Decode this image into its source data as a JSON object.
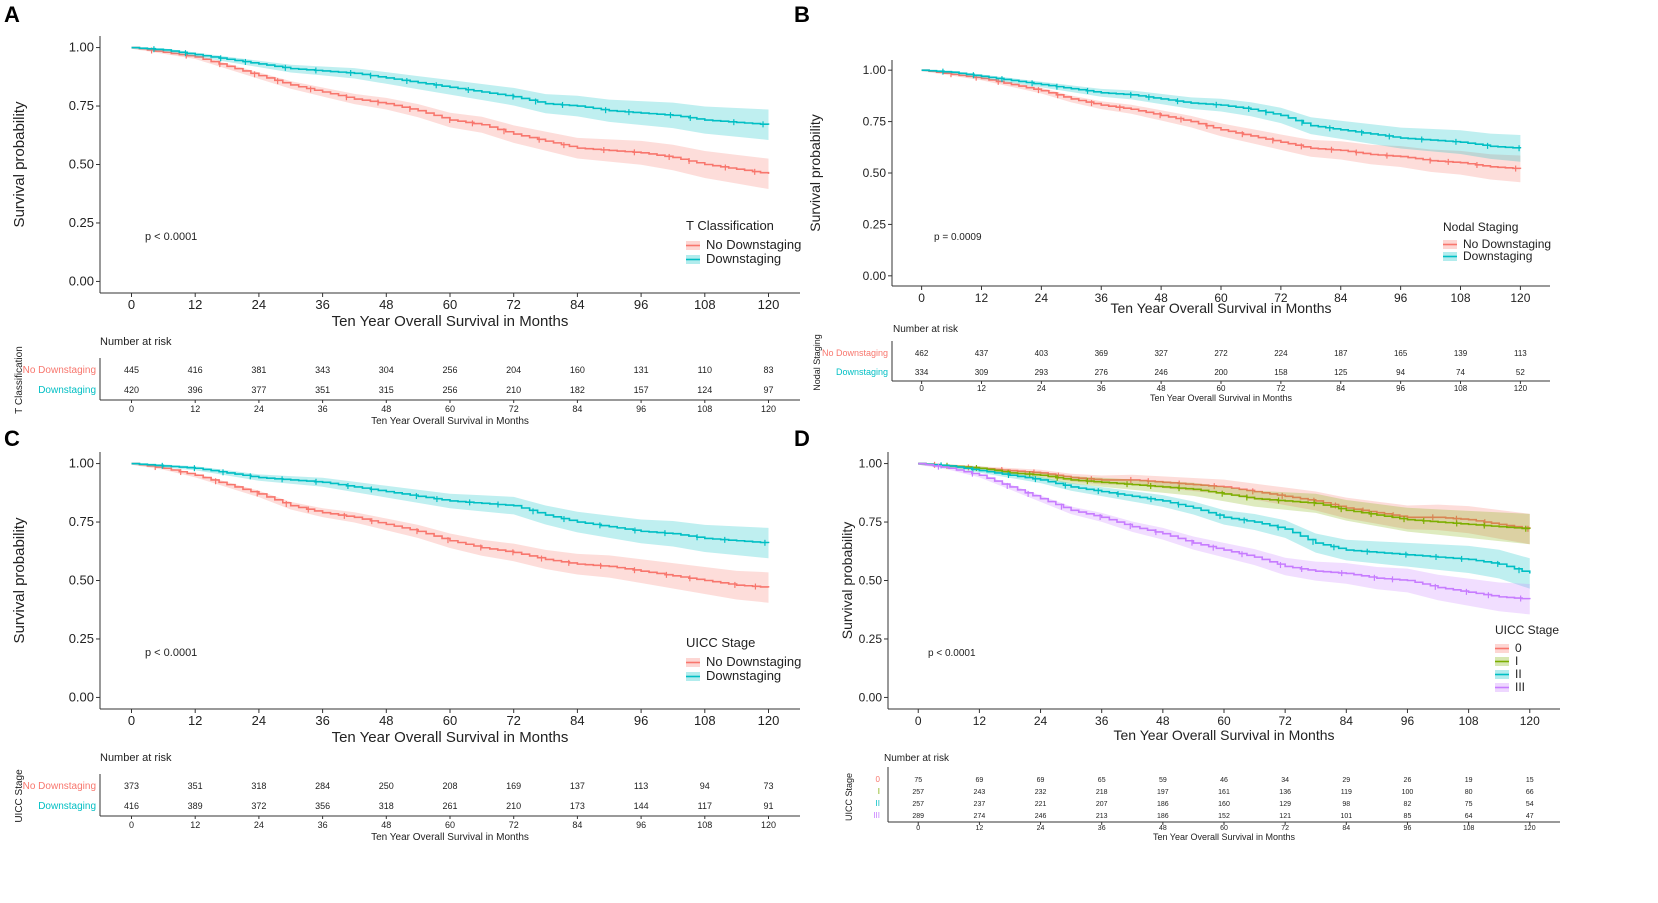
{
  "colors": {
    "no_downstaging": "#F8766D",
    "downstaging": "#00BFC4",
    "stage0": "#F8766D",
    "stageI": "#7CAE00",
    "stageII": "#00BFC4",
    "stageIII": "#C77CFF",
    "axis": "#333333",
    "text": "#222222"
  },
  "chart_data": [
    {
      "panel": "A",
      "type": "line",
      "ylabel": "Survival probability",
      "xlabel": "Ten Year Overall Survival in Months",
      "x_ticks": [
        0,
        12,
        24,
        36,
        48,
        60,
        72,
        84,
        96,
        108,
        120
      ],
      "y_ticks": [
        "0.00",
        "0.25",
        "0.50",
        "0.75",
        "1.00"
      ],
      "xlim": [
        0,
        120
      ],
      "ylim": [
        0,
        1
      ],
      "pvalue": "p < 0.0001",
      "legend_title": "T Classification",
      "series": [
        {
          "name": "No Downstaging",
          "color_key": "no_downstaging",
          "x": [
            0,
            6,
            12,
            18,
            24,
            30,
            36,
            42,
            48,
            54,
            60,
            66,
            72,
            78,
            84,
            90,
            96,
            102,
            108,
            114,
            120
          ],
          "values": [
            1.0,
            0.98,
            0.96,
            0.92,
            0.88,
            0.84,
            0.81,
            0.78,
            0.76,
            0.73,
            0.69,
            0.67,
            0.63,
            0.6,
            0.57,
            0.56,
            0.55,
            0.53,
            0.5,
            0.48,
            0.46
          ]
        },
        {
          "name": "Downstaging",
          "color_key": "downstaging",
          "x": [
            0,
            6,
            12,
            18,
            24,
            30,
            36,
            42,
            48,
            54,
            60,
            66,
            72,
            78,
            84,
            90,
            96,
            102,
            108,
            114,
            120
          ],
          "values": [
            1.0,
            0.99,
            0.97,
            0.95,
            0.93,
            0.91,
            0.9,
            0.89,
            0.87,
            0.85,
            0.83,
            0.81,
            0.79,
            0.76,
            0.75,
            0.73,
            0.72,
            0.71,
            0.69,
            0.68,
            0.67
          ]
        }
      ],
      "risk_table": {
        "header": "Number at risk",
        "strata_label": "T Classification",
        "xlabel": "Ten Year Overall Survival in Months",
        "rows": [
          {
            "name": "No Downstaging",
            "color_key": "no_downstaging",
            "values": [
              "445",
              "416",
              "381",
              "343",
              "304",
              "256",
              "204",
              "160",
              "131",
              "110",
              "83"
            ]
          },
          {
            "name": "Downstaging",
            "color_key": "downstaging",
            "values": [
              "420",
              "396",
              "377",
              "351",
              "315",
              "256",
              "210",
              "182",
              "157",
              "124",
              "97"
            ]
          }
        ]
      }
    },
    {
      "panel": "B",
      "type": "line",
      "ylabel": "Survival probability",
      "xlabel": "Ten Year Overall Survival in Months",
      "x_ticks": [
        0,
        12,
        24,
        36,
        48,
        60,
        72,
        84,
        96,
        108,
        120
      ],
      "y_ticks": [
        "0.00",
        "0.25",
        "0.50",
        "0.75",
        "1.00"
      ],
      "xlim": [
        0,
        120
      ],
      "ylim": [
        0,
        1
      ],
      "pvalue": "p = 0.0009",
      "legend_title": "Nodal Staging",
      "series": [
        {
          "name": "No Downstaging",
          "color_key": "no_downstaging",
          "x": [
            0,
            6,
            12,
            18,
            24,
            30,
            36,
            42,
            48,
            54,
            60,
            66,
            72,
            78,
            84,
            90,
            96,
            102,
            108,
            114,
            120
          ],
          "values": [
            1.0,
            0.98,
            0.96,
            0.93,
            0.9,
            0.86,
            0.83,
            0.81,
            0.78,
            0.75,
            0.71,
            0.68,
            0.65,
            0.62,
            0.61,
            0.59,
            0.58,
            0.56,
            0.55,
            0.53,
            0.52
          ]
        },
        {
          "name": "Downstaging",
          "color_key": "downstaging",
          "x": [
            0,
            6,
            12,
            18,
            24,
            30,
            36,
            42,
            48,
            54,
            60,
            66,
            72,
            78,
            84,
            90,
            96,
            102,
            108,
            114,
            120
          ],
          "values": [
            1.0,
            0.99,
            0.97,
            0.95,
            0.93,
            0.91,
            0.89,
            0.88,
            0.86,
            0.84,
            0.83,
            0.81,
            0.78,
            0.73,
            0.71,
            0.69,
            0.67,
            0.66,
            0.65,
            0.63,
            0.62
          ]
        }
      ],
      "risk_table": {
        "header": "Number at risk",
        "strata_label": "Nodal Staging",
        "xlabel": "Ten Year Overall Survival in Months",
        "rows": [
          {
            "name": "No Downstaging",
            "color_key": "no_downstaging",
            "values": [
              "462",
              "437",
              "403",
              "369",
              "327",
              "272",
              "224",
              "187",
              "165",
              "139",
              "113"
            ]
          },
          {
            "name": "Downstaging",
            "color_key": "downstaging",
            "values": [
              "334",
              "309",
              "293",
              "276",
              "246",
              "200",
              "158",
              "125",
              "94",
              "74",
              "52"
            ]
          }
        ]
      }
    },
    {
      "panel": "C",
      "type": "line",
      "ylabel": "Survival probability",
      "xlabel": "Ten Year Overall Survival in Months",
      "x_ticks": [
        0,
        12,
        24,
        36,
        48,
        60,
        72,
        84,
        96,
        108,
        120
      ],
      "y_ticks": [
        "0.00",
        "0.25",
        "0.50",
        "0.75",
        "1.00"
      ],
      "xlim": [
        0,
        120
      ],
      "ylim": [
        0,
        1
      ],
      "pvalue": "p < 0.0001",
      "legend_title": "UICC Stage",
      "series": [
        {
          "name": "No Downstaging",
          "color_key": "no_downstaging",
          "x": [
            0,
            6,
            12,
            18,
            24,
            30,
            36,
            42,
            48,
            54,
            60,
            66,
            72,
            78,
            84,
            90,
            96,
            102,
            108,
            114,
            120
          ],
          "values": [
            1.0,
            0.98,
            0.95,
            0.91,
            0.87,
            0.82,
            0.79,
            0.77,
            0.74,
            0.71,
            0.67,
            0.64,
            0.62,
            0.59,
            0.57,
            0.56,
            0.54,
            0.52,
            0.5,
            0.48,
            0.47
          ]
        },
        {
          "name": "Downstaging",
          "color_key": "downstaging",
          "x": [
            0,
            6,
            12,
            18,
            24,
            30,
            36,
            42,
            48,
            54,
            60,
            66,
            72,
            78,
            84,
            90,
            96,
            102,
            108,
            114,
            120
          ],
          "values": [
            1.0,
            0.99,
            0.98,
            0.96,
            0.94,
            0.93,
            0.92,
            0.9,
            0.88,
            0.86,
            0.84,
            0.83,
            0.82,
            0.78,
            0.75,
            0.73,
            0.71,
            0.7,
            0.68,
            0.67,
            0.66
          ]
        }
      ],
      "risk_table": {
        "header": "Number at risk",
        "strata_label": "UICC Stage",
        "xlabel": "Ten Year Overall Survival in Months",
        "rows": [
          {
            "name": "No Downstaging",
            "color_key": "no_downstaging",
            "values": [
              "373",
              "351",
              "318",
              "284",
              "250",
              "208",
              "169",
              "137",
              "113",
              "94",
              "73"
            ]
          },
          {
            "name": "Downstaging",
            "color_key": "downstaging",
            "values": [
              "416",
              "389",
              "372",
              "356",
              "318",
              "261",
              "210",
              "173",
              "144",
              "117",
              "91"
            ]
          }
        ]
      }
    },
    {
      "panel": "D",
      "type": "line",
      "ylabel": "Survival probability",
      "xlabel": "Ten Year Overall Survival in Months",
      "x_ticks": [
        0,
        12,
        24,
        36,
        48,
        60,
        72,
        84,
        96,
        108,
        120
      ],
      "y_ticks": [
        "0.00",
        "0.25",
        "0.50",
        "0.75",
        "1.00"
      ],
      "xlim": [
        0,
        120
      ],
      "ylim": [
        0,
        1
      ],
      "pvalue": "p < 0.0001",
      "legend_title": "UICC Stage",
      "series": [
        {
          "name": "0",
          "color_key": "stage0",
          "x": [
            0,
            6,
            12,
            18,
            24,
            30,
            36,
            42,
            48,
            54,
            60,
            66,
            72,
            78,
            84,
            90,
            96,
            102,
            108,
            114,
            120
          ],
          "values": [
            1.0,
            0.99,
            0.98,
            0.97,
            0.96,
            0.94,
            0.93,
            0.93,
            0.92,
            0.91,
            0.9,
            0.88,
            0.86,
            0.84,
            0.81,
            0.79,
            0.77,
            0.77,
            0.76,
            0.74,
            0.72
          ]
        },
        {
          "name": "I",
          "color_key": "stageI",
          "x": [
            0,
            6,
            12,
            18,
            24,
            30,
            36,
            42,
            48,
            54,
            60,
            66,
            72,
            78,
            84,
            90,
            96,
            102,
            108,
            114,
            120
          ],
          "values": [
            1.0,
            0.99,
            0.98,
            0.96,
            0.95,
            0.93,
            0.92,
            0.91,
            0.9,
            0.89,
            0.87,
            0.85,
            0.84,
            0.83,
            0.8,
            0.78,
            0.76,
            0.75,
            0.74,
            0.73,
            0.72
          ]
        },
        {
          "name": "II",
          "color_key": "stageII",
          "x": [
            0,
            6,
            12,
            18,
            24,
            30,
            36,
            42,
            48,
            54,
            60,
            66,
            72,
            78,
            84,
            90,
            96,
            102,
            108,
            114,
            120
          ],
          "values": [
            1.0,
            0.99,
            0.97,
            0.95,
            0.93,
            0.9,
            0.88,
            0.86,
            0.84,
            0.81,
            0.77,
            0.75,
            0.72,
            0.66,
            0.63,
            0.62,
            0.61,
            0.6,
            0.59,
            0.57,
            0.53
          ]
        },
        {
          "name": "III",
          "color_key": "stageIII",
          "x": [
            0,
            6,
            12,
            18,
            24,
            30,
            36,
            42,
            48,
            54,
            60,
            66,
            72,
            78,
            84,
            90,
            96,
            102,
            108,
            114,
            120
          ],
          "values": [
            1.0,
            0.98,
            0.95,
            0.9,
            0.85,
            0.8,
            0.77,
            0.73,
            0.7,
            0.66,
            0.63,
            0.6,
            0.56,
            0.54,
            0.53,
            0.51,
            0.5,
            0.47,
            0.45,
            0.43,
            0.42
          ]
        }
      ],
      "risk_table": {
        "header": "Number at risk",
        "strata_label": "UICC Stage",
        "xlabel": "Ten Year Overall Survival in Months",
        "rows": [
          {
            "name": "0",
            "color_key": "stage0",
            "values": [
              "75",
              "69",
              "69",
              "65",
              "59",
              "46",
              "34",
              "29",
              "26",
              "19",
              "15"
            ]
          },
          {
            "name": "I",
            "color_key": "stageI",
            "values": [
              "257",
              "243",
              "232",
              "218",
              "197",
              "161",
              "136",
              "119",
              "100",
              "80",
              "66"
            ]
          },
          {
            "name": "II",
            "color_key": "stageII",
            "values": [
              "257",
              "237",
              "221",
              "207",
              "186",
              "160",
              "129",
              "98",
              "82",
              "75",
              "54"
            ]
          },
          {
            "name": "III",
            "color_key": "stageIII",
            "values": [
              "289",
              "274",
              "246",
              "213",
              "186",
              "152",
              "121",
              "101",
              "85",
              "64",
              "47"
            ]
          }
        ]
      }
    }
  ]
}
